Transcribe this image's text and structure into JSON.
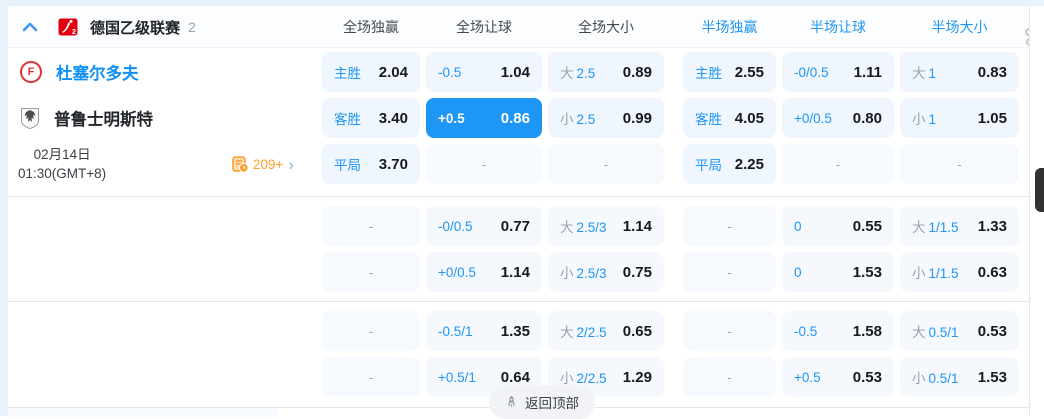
{
  "league_bar": {
    "name": "德国乙级联赛",
    "match_count": "2",
    "logo_number": "2"
  },
  "columns": {
    "full": [
      "全场独赢",
      "全场让球",
      "全场大小"
    ],
    "half": [
      "半场独赢",
      "半场让球",
      "半场大小"
    ]
  },
  "match": {
    "home": {
      "name": "杜塞尔多夫",
      "badge_letter": "F"
    },
    "away": {
      "name": "普鲁士明斯特"
    },
    "schedule": {
      "date": "02月14日",
      "time": "01:30(GMT+8)"
    },
    "markets_count": "209+"
  },
  "footer": {
    "back_to_top": "返回顶部"
  },
  "colors": {
    "accent_blue": "#1e96f5",
    "selected_bg": "#1e96f5",
    "orange": "#ff9d2e",
    "home_team_red": "#e03131"
  },
  "odds": {
    "groups": [
      {
        "rows": [
          [
            {
              "t": "win",
              "label": "主胜",
              "value": "2.04"
            },
            {
              "t": "hdp",
              "label": "-0.5",
              "value": "1.04"
            },
            {
              "t": "ou",
              "side": "大",
              "line": "2.5",
              "value": "0.89"
            },
            {
              "t": "win",
              "label": "主胜",
              "value": "2.55"
            },
            {
              "t": "hdp",
              "label": "-0/0.5",
              "value": "1.11"
            },
            {
              "t": "ou",
              "side": "大",
              "line": "1",
              "value": "0.83"
            }
          ],
          [
            {
              "t": "win",
              "label": "客胜",
              "value": "3.40"
            },
            {
              "t": "hdp",
              "label": "+0.5",
              "value": "0.86",
              "selected": true
            },
            {
              "t": "ou",
              "side": "小",
              "line": "2.5",
              "value": "0.99"
            },
            {
              "t": "win",
              "label": "客胜",
              "value": "4.05"
            },
            {
              "t": "hdp",
              "label": "+0/0.5",
              "value": "0.80"
            },
            {
              "t": "ou",
              "side": "小",
              "line": "1",
              "value": "1.05"
            }
          ],
          [
            {
              "t": "win",
              "label": "平局",
              "value": "3.70"
            },
            {
              "t": "empty"
            },
            {
              "t": "empty"
            },
            {
              "t": "win",
              "label": "平局",
              "value": "2.25"
            },
            {
              "t": "empty"
            },
            {
              "t": "empty"
            }
          ]
        ]
      },
      {
        "rows": [
          [
            {
              "t": "empty"
            },
            {
              "t": "hdp",
              "label": "-0/0.5",
              "value": "0.77"
            },
            {
              "t": "ou",
              "side": "大",
              "line": "2.5/3",
              "value": "1.14"
            },
            {
              "t": "empty"
            },
            {
              "t": "hdp",
              "label": "0",
              "value": "0.55"
            },
            {
              "t": "ou",
              "side": "大",
              "line": "1/1.5",
              "value": "1.33"
            }
          ],
          [
            {
              "t": "empty"
            },
            {
              "t": "hdp",
              "label": "+0/0.5",
              "value": "1.14"
            },
            {
              "t": "ou",
              "side": "小",
              "line": "2.5/3",
              "value": "0.75"
            },
            {
              "t": "empty"
            },
            {
              "t": "hdp",
              "label": "0",
              "value": "1.53"
            },
            {
              "t": "ou",
              "side": "小",
              "line": "1/1.5",
              "value": "0.63"
            }
          ]
        ]
      },
      {
        "rows": [
          [
            {
              "t": "empty"
            },
            {
              "t": "hdp",
              "label": "-0.5/1",
              "value": "1.35"
            },
            {
              "t": "ou",
              "side": "大",
              "line": "2/2.5",
              "value": "0.65"
            },
            {
              "t": "empty"
            },
            {
              "t": "hdp",
              "label": "-0.5",
              "value": "1.58"
            },
            {
              "t": "ou",
              "side": "大",
              "line": "0.5/1",
              "value": "0.53"
            }
          ],
          [
            {
              "t": "empty"
            },
            {
              "t": "hdp",
              "label": "+0.5/1",
              "value": "0.64"
            },
            {
              "t": "ou",
              "side": "小",
              "line": "2/2.5",
              "value": "1.29"
            },
            {
              "t": "empty"
            },
            {
              "t": "hdp",
              "label": "+0.5",
              "value": "0.53"
            },
            {
              "t": "ou",
              "side": "小",
              "line": "0.5/1",
              "value": "1.53"
            }
          ]
        ]
      }
    ]
  }
}
